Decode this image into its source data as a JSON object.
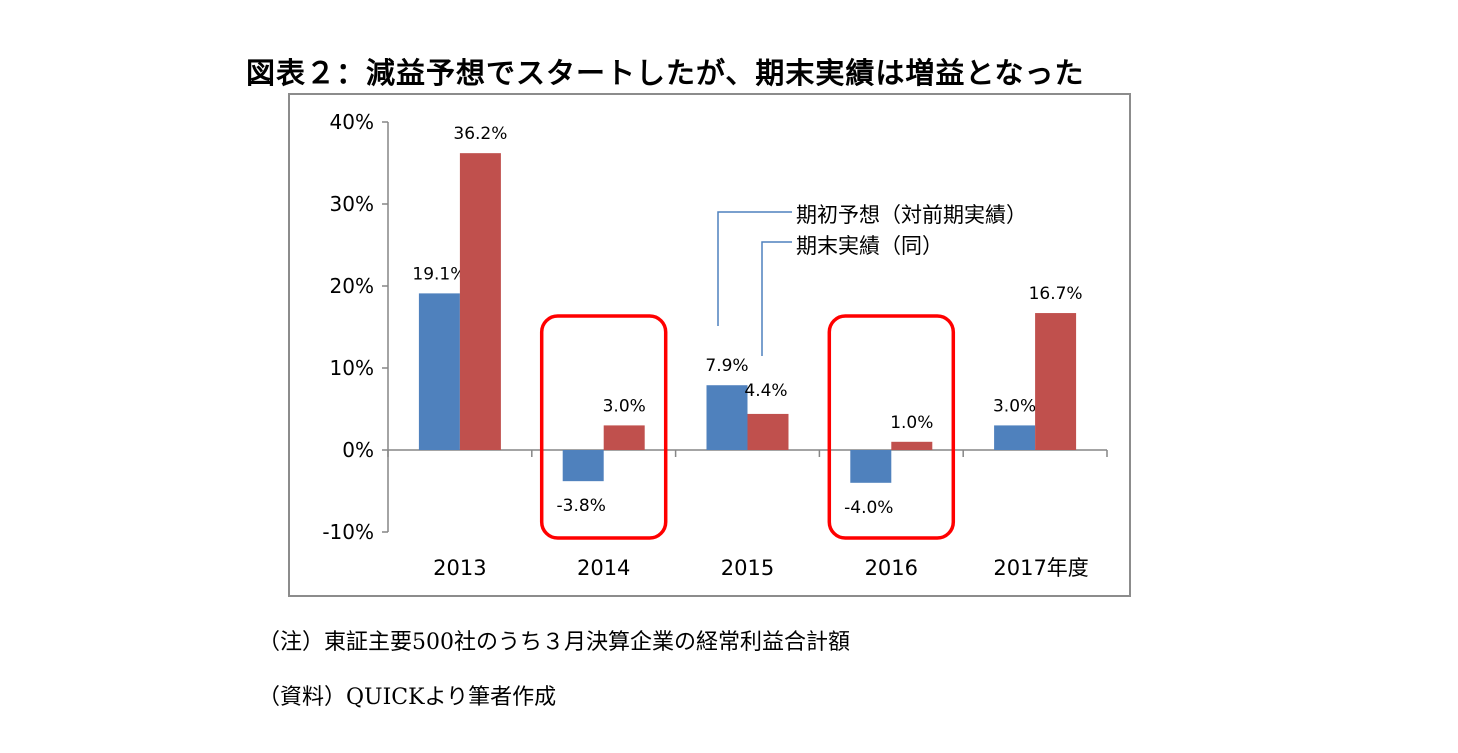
{
  "title": "図表２：減益予想でスタートしたが、期末実績は増益となった",
  "notes": {
    "note1": "（注）東証主要500社のうち３月決算企業の経常利益合計額",
    "note2": "（資料）QUICKより筆者作成"
  },
  "chart_data": {
    "type": "bar",
    "categories": [
      "2013",
      "2014",
      "2015",
      "2016",
      "2017年度"
    ],
    "series": [
      {
        "name": "期初予想（対前期実績）",
        "values": [
          19.1,
          -3.8,
          7.9,
          -4.0,
          3.0
        ],
        "color": "#4f81bd"
      },
      {
        "name": "期末実績（同）",
        "values": [
          36.2,
          3.0,
          4.4,
          1.0,
          16.7
        ],
        "color": "#c0504d"
      }
    ],
    "data_labels": {
      "series0": [
        "19.1%",
        "-3.8%",
        "7.9%",
        "-4.0%",
        "3.0%"
      ],
      "series1": [
        "36.2%",
        "3.0%",
        "4.4%",
        "1.0%",
        "16.7%"
      ]
    },
    "y_ticks": [
      40,
      30,
      20,
      10,
      0,
      -10
    ],
    "y_tick_labels": [
      "40%",
      "30%",
      "20%",
      "10%",
      "0%",
      "-10%"
    ],
    "ylim": [
      -10,
      40
    ],
    "grid": false,
    "legend_placement": "center, with leader lines to the 2015 bars",
    "highlight_categories": [
      "2014",
      "2016"
    ],
    "highlight_color": "#ff0000"
  }
}
